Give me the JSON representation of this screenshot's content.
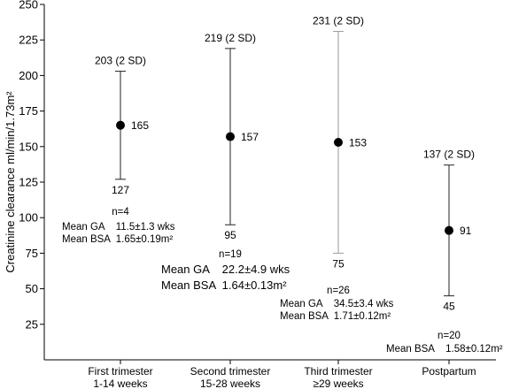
{
  "chart_data": {
    "type": "scatter",
    "title": "",
    "xlabel": "",
    "ylabel": "Creatinine clearance ml/min/1.73m²",
    "ylim": [
      0,
      250
    ],
    "yticks": [
      "25",
      "50",
      "75",
      "100",
      "125",
      "150",
      "175",
      "200",
      "225",
      "250"
    ],
    "ytick_values": [
      25,
      50,
      75,
      100,
      125,
      150,
      175,
      200,
      225,
      250
    ],
    "grid": false,
    "categories": [
      {
        "line1": "First trimester",
        "line2": "1-14 weeks"
      },
      {
        "line1": "Second trimester",
        "line2": "15-28 weeks"
      },
      {
        "line1": "Third trimester",
        "line2": "≥29 weeks"
      },
      {
        "line1": "Postpartum",
        "line2": ""
      }
    ],
    "points": [
      {
        "mean": 165,
        "mean_label": "165",
        "upper": 203,
        "upper_label": "203 (2 SD)",
        "lower": 127,
        "lower_label": "127",
        "n": "n=4",
        "ga": "Mean GA    11.5±1.3 wks",
        "bsa": "Mean BSA  1.65±0.19m²",
        "bar_color": "#222222"
      },
      {
        "mean": 157,
        "mean_label": "157",
        "upper": 219,
        "upper_label": "219 (2 SD)",
        "lower": 95,
        "lower_label": "95",
        "n": "n=19",
        "ga": "Mean GA    22.2±4.9 wks",
        "bsa": "Mean BSA  1.64±0.13m²",
        "bar_color": "#222222"
      },
      {
        "mean": 153,
        "mean_label": "153",
        "upper": 231,
        "upper_label": "231 (2 SD)",
        "lower": 75,
        "lower_label": "75",
        "n": "n=26",
        "ga": "Mean GA    34.5±3.4 wks",
        "bsa": "Mean BSA  1.71±0.12m²",
        "bar_color": "#9a9a9a"
      },
      {
        "mean": 91,
        "mean_label": "91",
        "upper": 137,
        "upper_label": "137 (2 SD)",
        "lower": 45,
        "lower_label": "45",
        "n": "n=20",
        "ga": "",
        "bsa": "Mean BSA    1.58±0.12m²",
        "bar_color": "#222222"
      }
    ]
  }
}
